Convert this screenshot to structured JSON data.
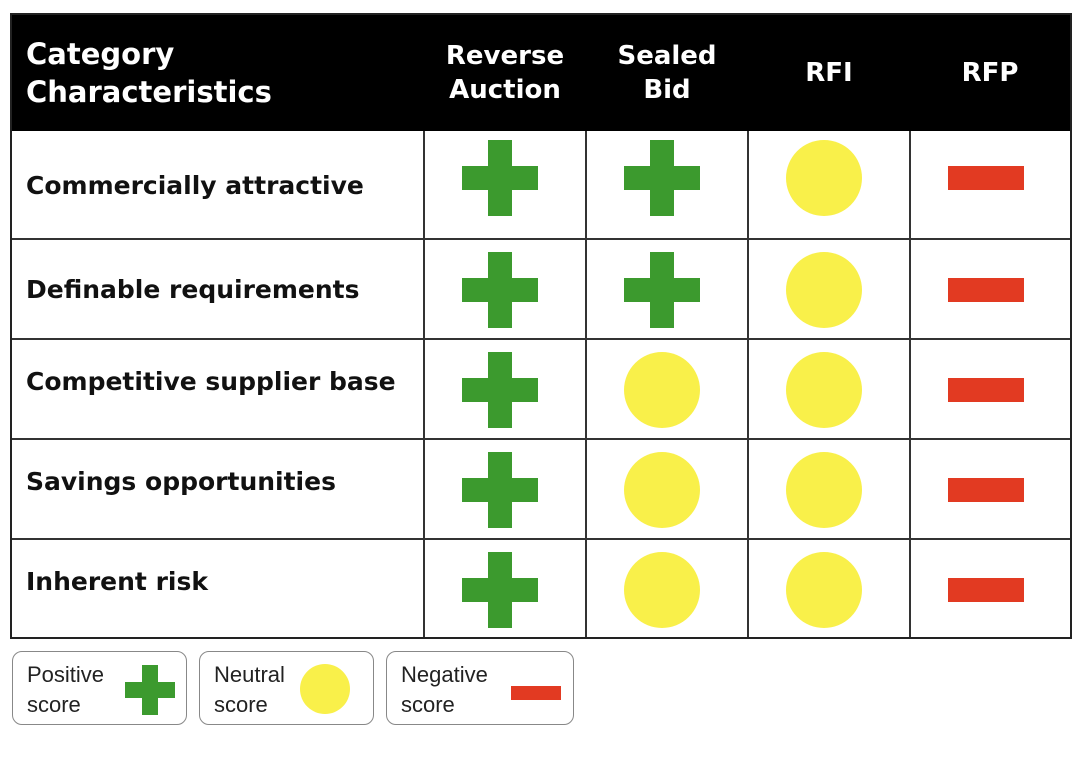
{
  "header": {
    "category": "Category\nCharacteristics",
    "columns": [
      "Reverse\nAuction",
      "Sealed\nBid",
      "RFI",
      "RFP"
    ]
  },
  "rows": [
    {
      "label": "Commercially attractive",
      "scores": [
        "positive",
        "positive",
        "neutral",
        "negative"
      ]
    },
    {
      "label": "Definable requirements",
      "scores": [
        "positive",
        "positive",
        "neutral",
        "negative"
      ]
    },
    {
      "label": "Competitive supplier base",
      "scores": [
        "positive",
        "neutral",
        "neutral",
        "negative"
      ]
    },
    {
      "label": "Savings opportunities",
      "scores": [
        "positive",
        "neutral",
        "neutral",
        "negative"
      ]
    },
    {
      "label": "Inherent risk",
      "scores": [
        "positive",
        "neutral",
        "neutral",
        "negative"
      ]
    }
  ],
  "legend": {
    "positive": "Positive\nscore",
    "neutral": "Neutral\nscore",
    "negative": "Negative\nscore"
  },
  "colors": {
    "positive": "#3c9a2e",
    "neutral": "#f9f04a",
    "negative": "#e23a22",
    "header_bg": "#000000"
  },
  "icons": {
    "positive": "plus-icon",
    "neutral": "circle-icon",
    "negative": "minus-icon"
  }
}
